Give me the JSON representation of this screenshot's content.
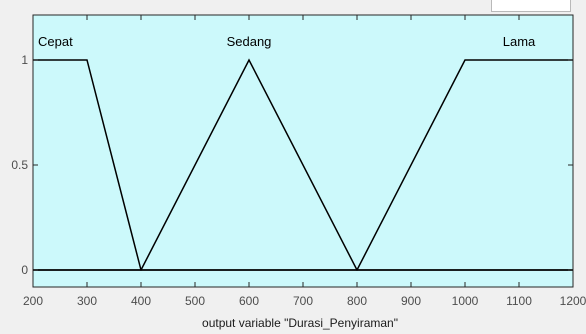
{
  "chart_data": {
    "type": "line",
    "xlabel": "output variable \"Durasi_Penyiraman\"",
    "ylabel": "",
    "xlim": [
      200,
      1200
    ],
    "ylim": [
      0,
      1
    ],
    "x_ticks": [
      "200",
      "300",
      "400",
      "500",
      "600",
      "700",
      "800",
      "900",
      "1000",
      "1100",
      "1200"
    ],
    "y_ticks": [
      "0",
      "0.5",
      "1"
    ],
    "grid": false,
    "background_color": "#ccf9fb",
    "line_color": "#000000",
    "series": [
      {
        "name": "Cepat",
        "x": [
          200,
          300,
          400,
          1200
        ],
        "y": [
          1,
          1,
          0,
          0
        ]
      },
      {
        "name": "Sedang",
        "x": [
          200,
          400,
          600,
          800,
          1200
        ],
        "y": [
          0,
          0,
          1,
          0,
          0
        ]
      },
      {
        "name": "Lama",
        "x": [
          200,
          800,
          1000,
          1200
        ],
        "y": [
          0,
          0,
          1,
          1
        ]
      }
    ],
    "annotations": [
      {
        "text": "Cepat",
        "x": 200,
        "y": 1
      },
      {
        "text": "Sedang",
        "x": 600,
        "y": 1
      },
      {
        "text": "Lama",
        "x": 1100,
        "y": 1
      }
    ]
  }
}
